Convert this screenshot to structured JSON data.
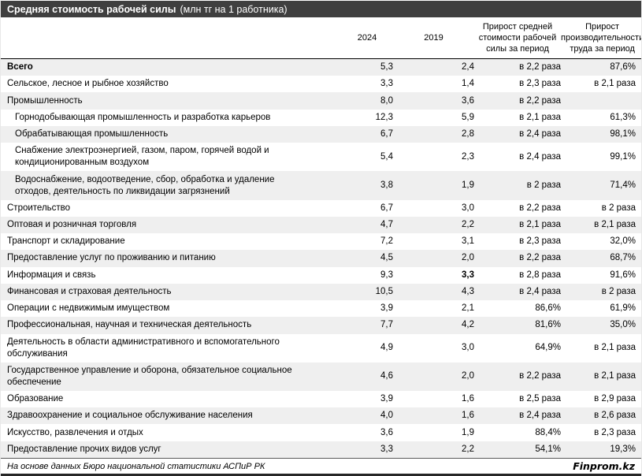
{
  "title": {
    "main": "Средняя стоимость рабочей силы",
    "unit": "(млн тг на 1 работника)"
  },
  "chart_data": {
    "type": "table",
    "title": "Средняя стоимость рабочей силы (млн тг на 1 работника)",
    "columns": [
      "2024",
      "2019",
      "Прирост средней стоимости рабочей силы за период",
      "Прирост производительности труда за период"
    ],
    "rows": [
      {
        "label": "Всего",
        "v2024": "5,3",
        "v2019": "2,4",
        "growth_cost": "в 2,2 раза",
        "growth_prod": "87,6%",
        "bold": true,
        "indent": false,
        "bold_2019": false
      },
      {
        "label": "Сельское, лесное и рыбное хозяйство",
        "v2024": "3,3",
        "v2019": "1,4",
        "growth_cost": "в 2,3 раза",
        "growth_prod": "в 2,1 раза",
        "bold": false,
        "indent": false,
        "bold_2019": false
      },
      {
        "label": "Промышленность",
        "v2024": "8,0",
        "v2019": "3,6",
        "growth_cost": "в 2,2 раза",
        "growth_prod": "",
        "bold": false,
        "indent": false,
        "bold_2019": false
      },
      {
        "label": "Горнодобывающая промышленность и разработка карьеров",
        "v2024": "12,3",
        "v2019": "5,9",
        "growth_cost": "в 2,1 раза",
        "growth_prod": "61,3%",
        "bold": false,
        "indent": true,
        "bold_2019": false
      },
      {
        "label": "Обрабатывающая промышленность",
        "v2024": "6,7",
        "v2019": "2,8",
        "growth_cost": "в 2,4 раза",
        "growth_prod": "98,1%",
        "bold": false,
        "indent": true,
        "bold_2019": false
      },
      {
        "label": "Снабжение электроэнергией, газом, паром, горячей водой и кондиционированным воздухом",
        "v2024": "5,4",
        "v2019": "2,3",
        "growth_cost": "в 2,4 раза",
        "growth_prod": "99,1%",
        "bold": false,
        "indent": true,
        "bold_2019": false
      },
      {
        "label": "Водоснабжение, водоотведение, сбор, обработка и удаление отходов, деятельность по ликвидации загрязнений",
        "v2024": "3,8",
        "v2019": "1,9",
        "growth_cost": "в 2 раза",
        "growth_prod": "71,4%",
        "bold": false,
        "indent": true,
        "bold_2019": false
      },
      {
        "label": "Строительство",
        "v2024": "6,7",
        "v2019": "3,0",
        "growth_cost": "в 2,2 раза",
        "growth_prod": "в 2 раза",
        "bold": false,
        "indent": false,
        "bold_2019": false
      },
      {
        "label": "Оптовая и розничная торговля",
        "v2024": "4,7",
        "v2019": "2,2",
        "growth_cost": "в 2,1 раза",
        "growth_prod": "в 2,1 раза",
        "bold": false,
        "indent": false,
        "bold_2019": false
      },
      {
        "label": "Транспорт и складирование",
        "v2024": "7,2",
        "v2019": "3,1",
        "growth_cost": "в 2,3 раза",
        "growth_prod": "32,0%",
        "bold": false,
        "indent": false,
        "bold_2019": false
      },
      {
        "label": "Предоставление услуг по проживанию и питанию",
        "v2024": "4,5",
        "v2019": "2,0",
        "growth_cost": "в 2,2 раза",
        "growth_prod": "68,7%",
        "bold": false,
        "indent": false,
        "bold_2019": false
      },
      {
        "label": "Информация и связь",
        "v2024": "9,3",
        "v2019": "3,3",
        "growth_cost": "в 2,8 раза",
        "growth_prod": "91,6%",
        "bold": false,
        "indent": false,
        "bold_2019": true
      },
      {
        "label": "Финансовая и страховая деятельность",
        "v2024": "10,5",
        "v2019": "4,3",
        "growth_cost": "в 2,4 раза",
        "growth_prod": "в 2 раза",
        "bold": false,
        "indent": false,
        "bold_2019": false
      },
      {
        "label": "Операции с недвижимым имуществом",
        "v2024": "3,9",
        "v2019": "2,1",
        "growth_cost": "86,6%",
        "growth_prod": "61,9%",
        "bold": false,
        "indent": false,
        "bold_2019": false
      },
      {
        "label": "Профессиональная, научная и техническая деятельность",
        "v2024": "7,7",
        "v2019": "4,2",
        "growth_cost": "81,6%",
        "growth_prod": "35,0%",
        "bold": false,
        "indent": false,
        "bold_2019": false
      },
      {
        "label": "Деятельность в области административного и вспомогательного обслуживания",
        "v2024": "4,9",
        "v2019": "3,0",
        "growth_cost": "64,9%",
        "growth_prod": "в 2,1 раза",
        "bold": false,
        "indent": false,
        "bold_2019": false
      },
      {
        "label": "Государственное управление и оборона, обязательное социальное обеспечение",
        "v2024": "4,6",
        "v2019": "2,0",
        "growth_cost": "в 2,2 раза",
        "growth_prod": "в 2,1 раза",
        "bold": false,
        "indent": false,
        "bold_2019": false
      },
      {
        "label": "Образование",
        "v2024": "3,9",
        "v2019": "1,6",
        "growth_cost": "в 2,5 раза",
        "growth_prod": "в 2,9 раза",
        "bold": false,
        "indent": false,
        "bold_2019": false
      },
      {
        "label": "Здравоохранение и социальное обслуживание населения",
        "v2024": "4,0",
        "v2019": "1,6",
        "growth_cost": "в 2,4 раза",
        "growth_prod": "в 2,6 раза",
        "bold": false,
        "indent": false,
        "bold_2019": false
      },
      {
        "label": "Искусство, развлечения и отдых",
        "v2024": "3,6",
        "v2019": "1,9",
        "growth_cost": "88,4%",
        "growth_prod": "в 2,3 раза",
        "bold": false,
        "indent": false,
        "bold_2019": false
      },
      {
        "label": "Предоставление прочих видов услуг",
        "v2024": "3,3",
        "v2019": "2,2",
        "growth_cost": "54,1%",
        "growth_prod": "19,3%",
        "bold": false,
        "indent": false,
        "bold_2019": false
      }
    ]
  },
  "footer": {
    "source": "На основе данных Бюро национальной статистики АСПиР РК",
    "brand": "Finprom.kz"
  },
  "colors": {
    "title_bar_bg": "#3f3f3f",
    "title_text": "#ffffff",
    "stripe_row_bg": "#efefef",
    "header_separator": "#000000",
    "footer_separator": "#595959",
    "bottom_bar": "#262626"
  }
}
